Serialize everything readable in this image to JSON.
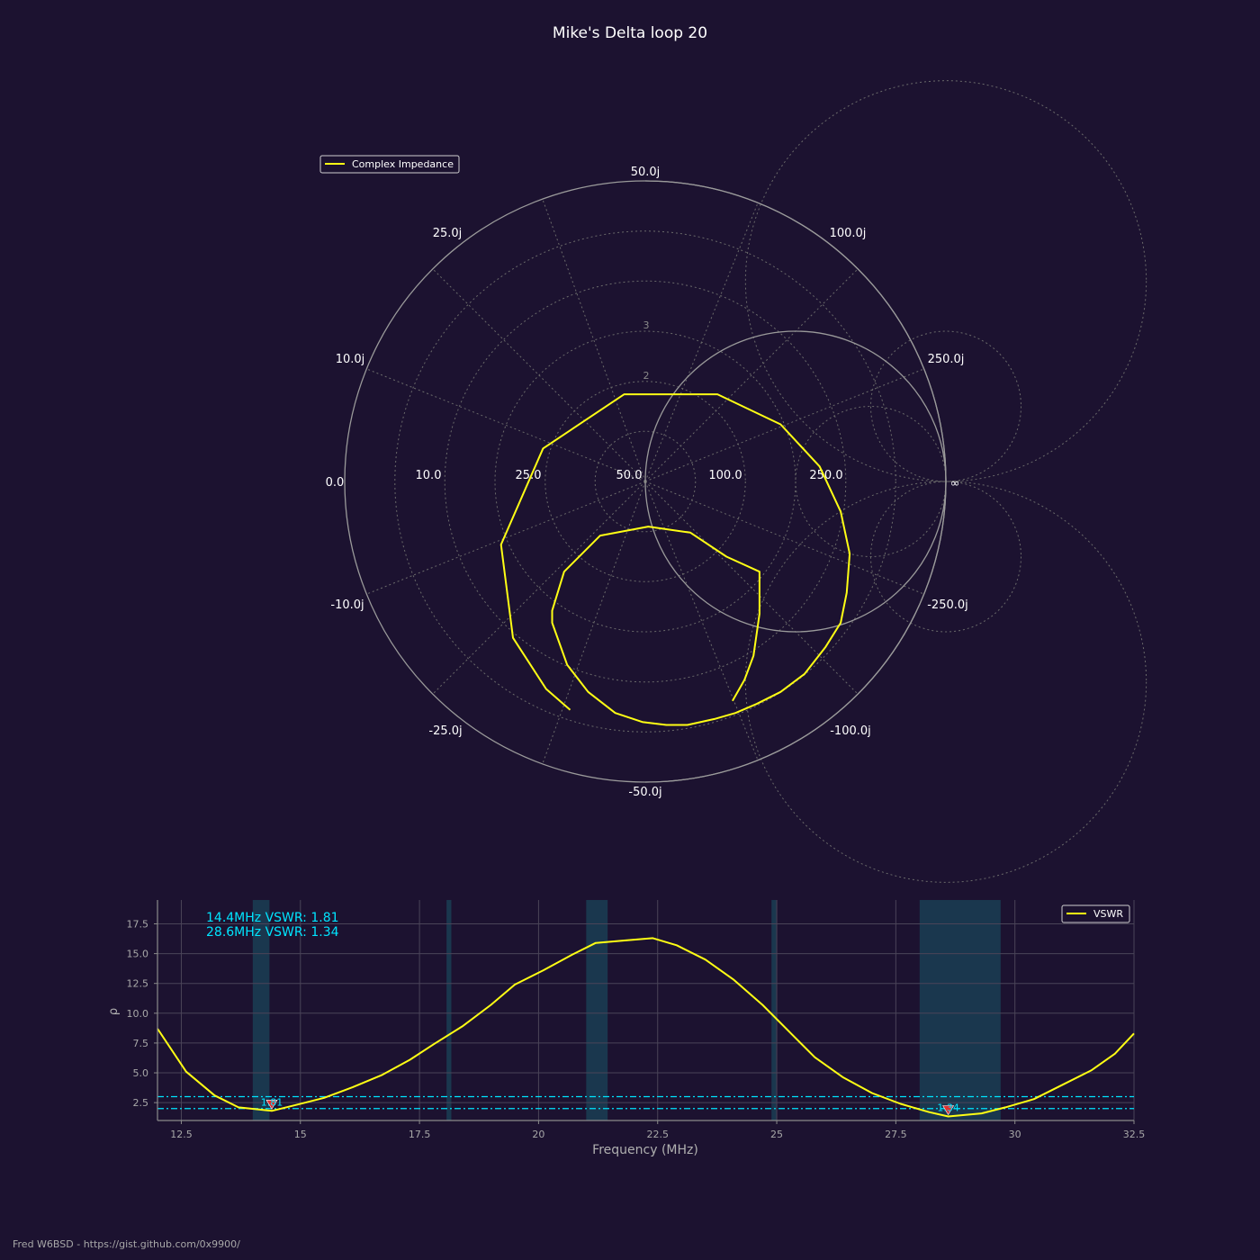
{
  "title": "Mike's Delta loop 20",
  "footer": "Fred W6BSD - https://gist.github.com/0x9900/",
  "colors": {
    "background": "#1c1230",
    "trace": "#ffff14",
    "accent": "#00e5ff",
    "band": "#1b3c52",
    "grid": "#9a9a9a",
    "marker": "#e03030"
  },
  "smith": {
    "legend": "Complex Impedance",
    "z0": 50,
    "resistance_labels": [
      "0.0",
      "10.0",
      "25.0",
      "50.0",
      "100.0",
      "250.0",
      "∞"
    ],
    "reactance_labels": [
      "50.0j",
      "25.0j",
      "100.0j",
      "10.0j",
      "250.0j",
      "-10.0j",
      "-250.0j",
      "-25.0j",
      "-100.0j",
      "-50.0j"
    ],
    "vswr_circle_labels": [
      "2",
      "3"
    ]
  },
  "chart_data": [
    {
      "type": "smith",
      "series": [
        {
          "name": "Complex Impedance",
          "gamma": [
            [
              -0.25,
              -0.76
            ],
            [
              -0.33,
              -0.69
            ],
            [
              -0.44,
              -0.52
            ],
            [
              -0.48,
              -0.21
            ],
            [
              -0.34,
              0.11
            ],
            [
              -0.07,
              0.29
            ],
            [
              0.24,
              0.29
            ],
            [
              0.45,
              0.19
            ],
            [
              0.58,
              0.05
            ],
            [
              0.65,
              -0.1
            ],
            [
              0.68,
              -0.24
            ],
            [
              0.67,
              -0.37
            ],
            [
              0.65,
              -0.47
            ],
            [
              0.6,
              -0.55
            ],
            [
              0.53,
              -0.64
            ],
            [
              0.45,
              -0.7
            ],
            [
              0.37,
              -0.74
            ],
            [
              0.3,
              -0.77
            ],
            [
              0.23,
              -0.79
            ],
            [
              0.14,
              -0.81
            ],
            [
              0.07,
              -0.81
            ],
            [
              -0.01,
              -0.8
            ],
            [
              -0.1,
              -0.77
            ],
            [
              -0.19,
              -0.7
            ],
            [
              -0.26,
              -0.61
            ],
            [
              -0.31,
              -0.47
            ],
            [
              -0.31,
              -0.43
            ],
            [
              -0.27,
              -0.3
            ],
            [
              -0.15,
              -0.18
            ],
            [
              0.01,
              -0.15
            ],
            [
              0.15,
              -0.17
            ],
            [
              0.27,
              -0.25
            ],
            [
              0.38,
              -0.3
            ],
            [
              0.38,
              -0.44
            ],
            [
              0.36,
              -0.58
            ],
            [
              0.33,
              -0.66
            ],
            [
              0.29,
              -0.73
            ]
          ]
        }
      ]
    },
    {
      "type": "line",
      "xlabel": "Frequency (MHz)",
      "ylabel": "ρ",
      "xlim": [
        12.0,
        32.5
      ],
      "ylim": [
        1.0,
        19.5
      ],
      "xticks": [
        12.5,
        15,
        17.5,
        20,
        22.5,
        25,
        27.5,
        30,
        32.5
      ],
      "xtick_labels": [
        "12.5",
        "15",
        "17.5",
        "20",
        "22.5",
        "25",
        "27.5",
        "30",
        "32.5"
      ],
      "yticks": [
        2.5,
        5.0,
        7.5,
        10.0,
        12.5,
        15.0,
        17.5
      ],
      "ytick_labels": [
        "2.5",
        "5.0",
        "7.5",
        "10.0",
        "12.5",
        "15.0",
        "17.5"
      ],
      "grid": true,
      "legend_position": "top-right",
      "series": [
        {
          "name": "VSWR",
          "x": [
            12.0,
            12.6,
            13.2,
            13.7,
            14.4,
            14.9,
            15.5,
            16.1,
            16.7,
            17.3,
            17.8,
            18.4,
            19.0,
            19.5,
            20.1,
            20.7,
            21.2,
            21.8,
            22.4,
            22.9,
            23.5,
            24.1,
            24.7,
            25.3,
            25.8,
            26.4,
            27.0,
            27.6,
            28.2,
            28.6,
            29.3,
            29.8,
            30.4,
            31.0,
            31.6,
            32.1,
            32.5
          ],
          "y": [
            8.7,
            5.1,
            3.1,
            2.1,
            1.81,
            2.3,
            2.9,
            3.8,
            4.8,
            6.1,
            7.4,
            8.9,
            10.7,
            12.4,
            13.6,
            14.9,
            15.9,
            16.1,
            16.3,
            15.7,
            14.5,
            12.8,
            10.7,
            8.3,
            6.3,
            4.6,
            3.3,
            2.4,
            1.7,
            1.34,
            1.6,
            2.1,
            2.8,
            4.0,
            5.2,
            6.6,
            8.3
          ]
        }
      ],
      "bands": [
        [
          14.0,
          14.35
        ],
        [
          18.068,
          18.168
        ],
        [
          21.0,
          21.45
        ],
        [
          24.89,
          24.99
        ],
        [
          28.0,
          29.7
        ]
      ],
      "hlines": [
        2.0,
        3.0
      ],
      "markers": [
        {
          "x": 14.4,
          "y": 1.81,
          "label": "1.81"
        },
        {
          "x": 28.6,
          "y": 1.34,
          "label": "1.34"
        }
      ],
      "annotations": [
        "14.4MHz VSWR: 1.81",
        "28.6MHz VSWR: 1.34"
      ]
    }
  ]
}
